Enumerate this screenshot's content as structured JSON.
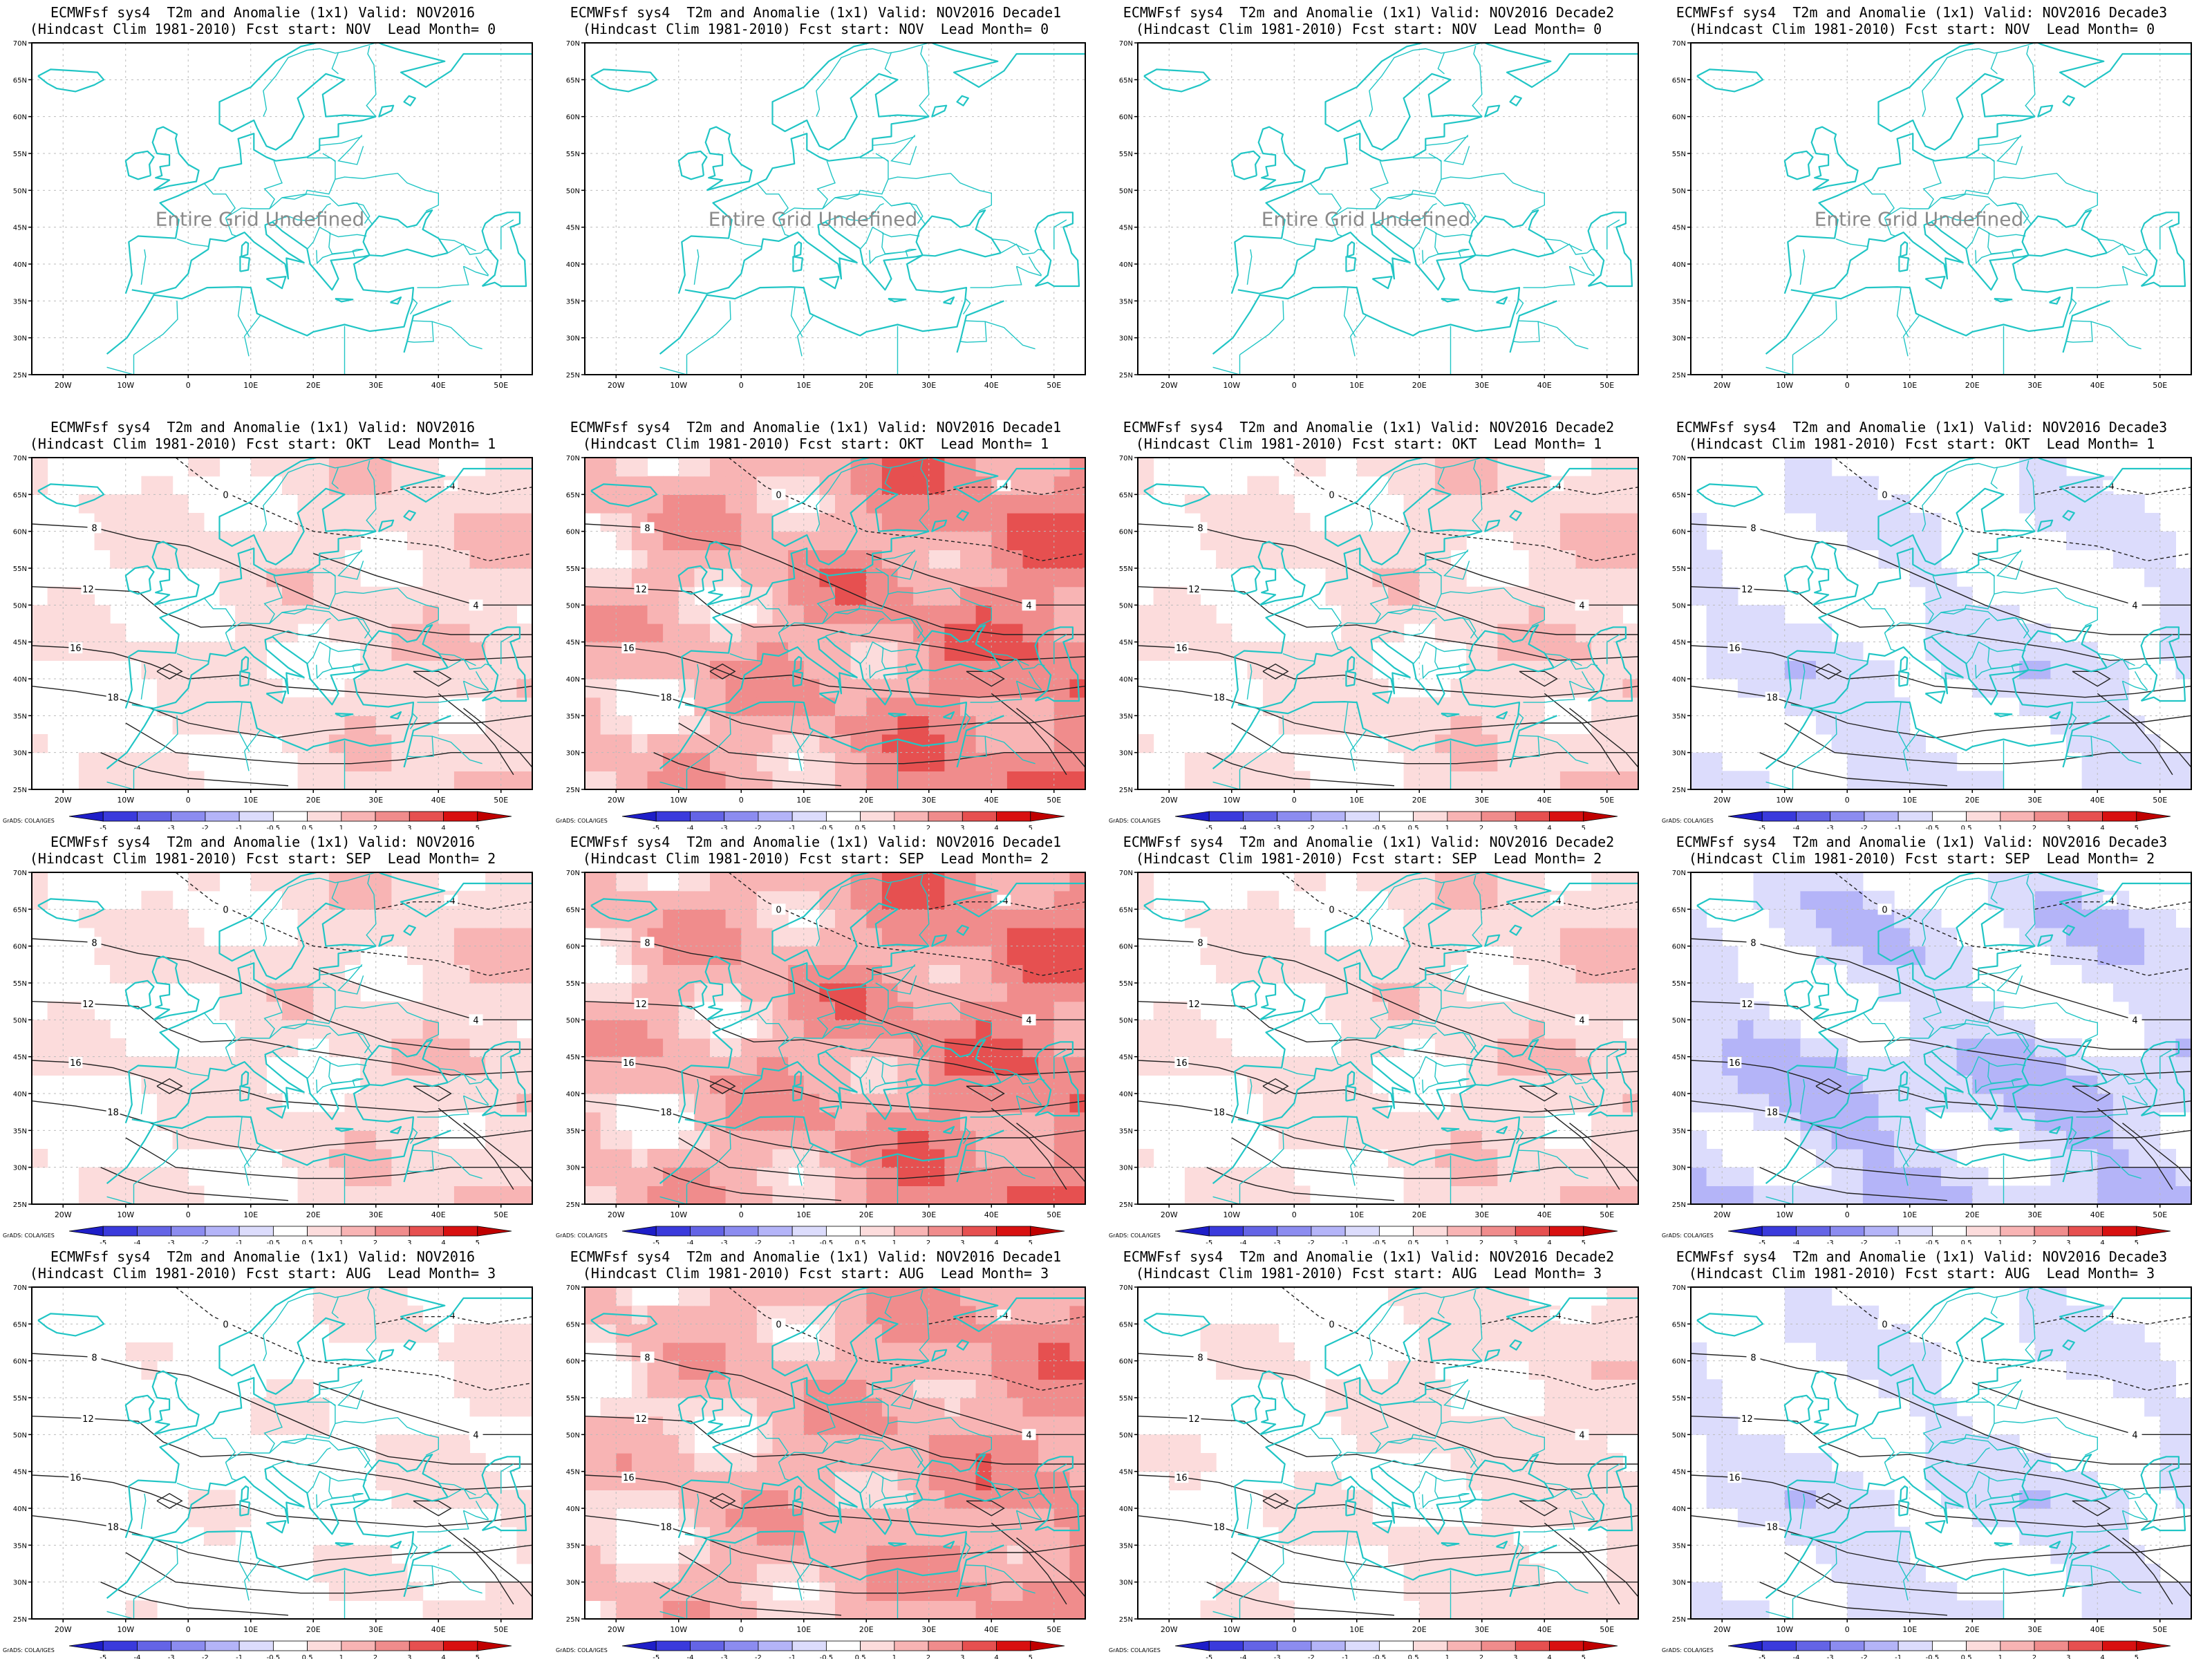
{
  "figure": {
    "title_prefix": "ECMWFsf sys4  T2m and Anomalie (1x1) Valid: ",
    "hindcast_prefix": "(Hindcast Clim 1981-2010) Fcst start: ",
    "lead_prefix": "  Lead Month= ",
    "columns": [
      "NOV2016",
      "NOV2016 Decade1",
      "NOV2016 Decade2",
      "NOV2016 Decade3"
    ],
    "rows": [
      {
        "fcst_start": "NOV",
        "lead": "0"
      },
      {
        "fcst_start": "OKT",
        "lead": "1"
      },
      {
        "fcst_start": "SEP",
        "lead": "2"
      },
      {
        "fcst_start": "AUG",
        "lead": "3"
      }
    ],
    "undefined_label": "Entire Grid Undefined",
    "colorbar_credit": "GrADS: COLA/IGES"
  },
  "map": {
    "lat_ticks": [
      "25N",
      "30N",
      "35N",
      "40N",
      "45N",
      "50N",
      "55N",
      "60N",
      "65N",
      "70N"
    ],
    "lon_ticks": [
      "20W",
      "10W",
      "0",
      "10E",
      "20E",
      "30E",
      "40E",
      "50E"
    ],
    "lon_range": [
      -25,
      55
    ],
    "lat_range": [
      25,
      70
    ],
    "coast_color": "#21c5c5",
    "contour_labels": [
      "-4",
      "0",
      "8",
      "12",
      "16",
      "18"
    ]
  },
  "chart_data": {
    "type": "heatmap",
    "colorbar": {
      "levels": [
        "-5",
        "-4",
        "-3",
        "-2",
        "-1",
        "-0.5",
        "0.5",
        "1",
        "2",
        "3",
        "4",
        "5"
      ],
      "colors": [
        "#1e1ec8",
        "#3a3adc",
        "#6464e6",
        "#8c8cf0",
        "#b4b4f8",
        "#dcdcfc",
        "#ffffff",
        "#fcdcdc",
        "#f8b4b4",
        "#f08c8c",
        "#e65050",
        "#d81010",
        "#c00000"
      ]
    },
    "panels": [
      {
        "row": 0,
        "col": 0,
        "anomaly_level": null
      },
      {
        "row": 0,
        "col": 1,
        "anomaly_level": null
      },
      {
        "row": 0,
        "col": 2,
        "anomaly_level": null
      },
      {
        "row": 0,
        "col": 3,
        "anomaly_level": null
      },
      {
        "row": 1,
        "col": 0,
        "anomaly_level": 1
      },
      {
        "row": 1,
        "col": 1,
        "anomaly_level": 3
      },
      {
        "row": 1,
        "col": 2,
        "anomaly_level": 1
      },
      {
        "row": 1,
        "col": 3,
        "anomaly_level": -1
      },
      {
        "row": 2,
        "col": 0,
        "anomaly_level": 1
      },
      {
        "row": 2,
        "col": 1,
        "anomaly_level": 3
      },
      {
        "row": 2,
        "col": 2,
        "anomaly_level": 1
      },
      {
        "row": 2,
        "col": 3,
        "anomaly_level": -1.5
      },
      {
        "row": 3,
        "col": 0,
        "anomaly_level": 0.6
      },
      {
        "row": 3,
        "col": 1,
        "anomaly_level": 2.5
      },
      {
        "row": 3,
        "col": 2,
        "anomaly_level": 0.8
      },
      {
        "row": 3,
        "col": 3,
        "anomaly_level": -1
      }
    ]
  }
}
